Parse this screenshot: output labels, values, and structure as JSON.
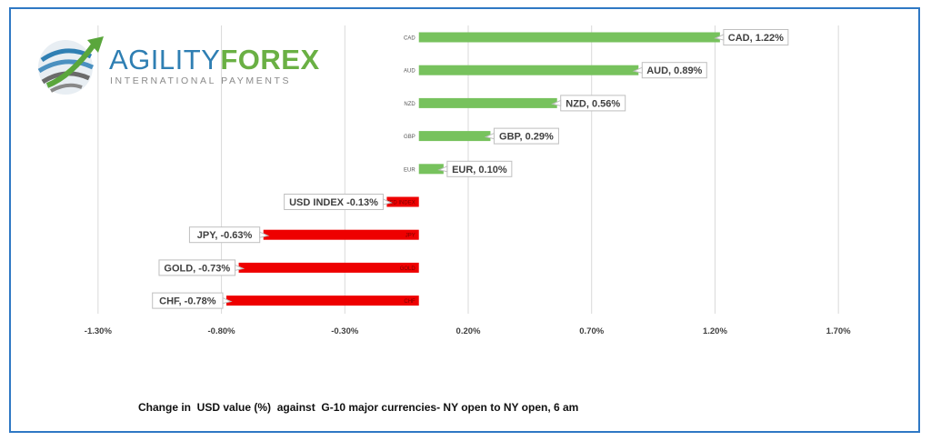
{
  "logo": {
    "word1": "AGILITY",
    "word2": "FOREX",
    "tagline": "INTERNATIONAL PAYMENTS",
    "colors": {
      "blue": "#2f7fb3",
      "green": "#6ab044",
      "gray": "#8a8a8a"
    }
  },
  "caption": "Change in  USD value (%)  against  G-10 major currencies- NY open to NY open, 6 am",
  "chart_data": {
    "type": "bar",
    "orientation": "horizontal",
    "categories": [
      "CAD",
      "AUD",
      "NZD",
      "GBP",
      "EUR",
      "USD INDEX",
      "JPY",
      "GOLD",
      "CHF"
    ],
    "values": [
      1.22,
      0.89,
      0.56,
      0.29,
      0.1,
      -0.13,
      -0.63,
      -0.73,
      -0.78
    ],
    "data_labels": [
      "CAD, 1.22%",
      "AUD, 0.89%",
      "NZD, 0.56%",
      "GBP, 0.29%",
      "EUR, 0.10%",
      "USD INDEX -0.13%",
      "JPY, -0.63%",
      "GOLD, -0.73%",
      "CHF, -0.78%"
    ],
    "xlim": [
      -1.55,
      1.95
    ],
    "x_ticks": [
      -1.3,
      -0.8,
      -0.3,
      0.2,
      0.7,
      1.2,
      1.7
    ],
    "x_tick_labels": [
      "-1.30%",
      "-0.80%",
      "-0.30%",
      "0.20%",
      "0.70%",
      "1.20%",
      "1.70%"
    ],
    "grid": "vertical",
    "colors": {
      "positive": "#77c25d",
      "negative": "#ee0000",
      "grid": "#d9d9d9"
    }
  }
}
